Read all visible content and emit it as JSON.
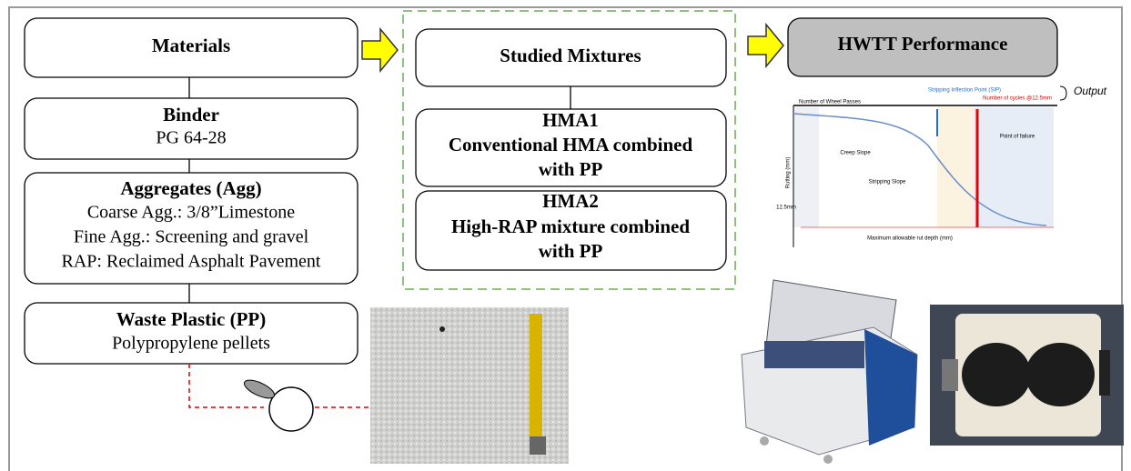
{
  "materials": {
    "title": "Materials",
    "binder": {
      "title": "Binder",
      "lines": [
        "PG 64-28"
      ]
    },
    "aggregates": {
      "title": "Aggregates (Agg)",
      "lines": [
        "Coarse Agg.: 3/8”Limestone",
        "Fine Agg.: Screening and gravel",
        "RAP: Reclaimed Asphalt Pavement"
      ]
    },
    "waste_plastic": {
      "title": "Waste Plastic (PP)",
      "lines": [
        "Polypropylene pellets"
      ]
    }
  },
  "studied_mixtures": {
    "title": "Studied Mixtures",
    "hma1": {
      "title": "HMA1",
      "lines": [
        "Conventional HMA combined",
        "with PP"
      ]
    },
    "hma2": {
      "title": "HMA2",
      "lines": [
        "High-RAP mixture combined",
        "with PP"
      ]
    }
  },
  "hwtt": {
    "title": "HWTT Performance",
    "output": "Output",
    "graph": {
      "x_label": "Number of Wheel Passes",
      "sip": "Stripping Inflection Point (SIP)",
      "cycles": "Number of cycles @12.5mm",
      "y_label": "Rutting (mm)",
      "depth": "12.5mm",
      "max_depth": "Maximum allowable rut depth (mm)",
      "failure": "Point of failure",
      "creep": "Creep Slope",
      "stripping": "Stripping Slope"
    }
  }
}
